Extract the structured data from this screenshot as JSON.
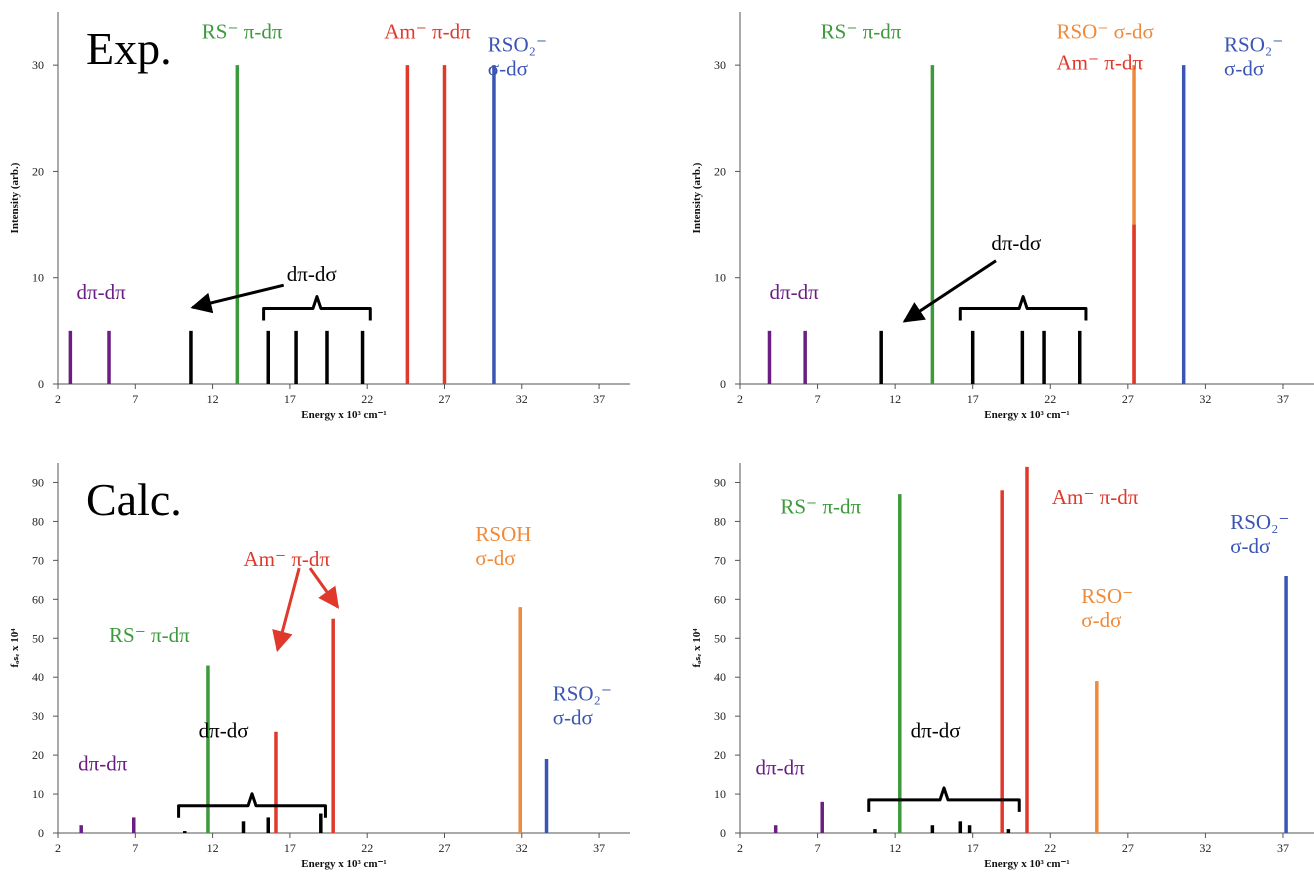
{
  "colors": {
    "purple": "#6a1e82",
    "black": "#000000",
    "green": "#3c9a3c",
    "red": "#e0392b",
    "orange": "#ef8a3a",
    "blue": "#3a55b4"
  },
  "chart_data": [
    {
      "type": "bar",
      "panel": "top-left",
      "big_label": "Exp.",
      "xlabel": "Energy x 10³ cm⁻¹",
      "ylabel": "Intensity (arb.)",
      "xlim": [
        2,
        39
      ],
      "ylim": [
        0,
        35
      ],
      "xticks": [
        2,
        7,
        12,
        17,
        22,
        27,
        32,
        37
      ],
      "yticks": [
        0,
        10,
        20,
        30
      ],
      "sticks": [
        {
          "x": 2.8,
          "y": 5,
          "color": "purple"
        },
        {
          "x": 5.3,
          "y": 5,
          "color": "purple"
        },
        {
          "x": 10.6,
          "y": 5,
          "color": "black"
        },
        {
          "x": 13.6,
          "y": 30,
          "color": "green"
        },
        {
          "x": 15.6,
          "y": 5,
          "color": "black"
        },
        {
          "x": 17.4,
          "y": 5,
          "color": "black"
        },
        {
          "x": 19.4,
          "y": 5,
          "color": "black"
        },
        {
          "x": 21.7,
          "y": 5,
          "color": "black"
        },
        {
          "x": 24.6,
          "y": 30,
          "color": "red"
        },
        {
          "x": 27.0,
          "y": 30,
          "color": "red"
        },
        {
          "x": 30.2,
          "y": 30,
          "color": "blue"
        }
      ],
      "annotations": [
        {
          "lines": [
            "dπ-dπ"
          ],
          "color": "purple",
          "x": 3.2,
          "y": 8
        },
        {
          "lines": [
            "dπ-dσ"
          ],
          "color": "black",
          "x": 16.8,
          "y": 9.7
        },
        {
          "lines": [
            "RS⁻ π-dπ"
          ],
          "color": "green",
          "x": 11.3,
          "y": 32.5
        },
        {
          "lines": [
            "Am⁻ π-dπ"
          ],
          "color": "red",
          "x": 23.1,
          "y": 32.5
        },
        {
          "lines": [
            "RSO₂⁻",
            "σ-dσ"
          ],
          "color": "blue",
          "x": 29.8,
          "y": 31.3
        }
      ]
    },
    {
      "type": "bar",
      "panel": "top-right",
      "big_label": "",
      "xlabel": "Energy x 10³ cm⁻¹",
      "ylabel": "Intensity (arb.)",
      "xlim": [
        2,
        39
      ],
      "ylim": [
        0,
        35
      ],
      "xticks": [
        2,
        7,
        12,
        17,
        22,
        27,
        32,
        37
      ],
      "yticks": [
        0,
        10,
        20,
        30
      ],
      "sticks": [
        {
          "x": 3.9,
          "y": 5,
          "color": "purple"
        },
        {
          "x": 6.2,
          "y": 5,
          "color": "purple"
        },
        {
          "x": 11.1,
          "y": 5,
          "color": "black"
        },
        {
          "x": 14.4,
          "y": 30,
          "color": "green"
        },
        {
          "x": 17.0,
          "y": 5,
          "color": "black"
        },
        {
          "x": 20.2,
          "y": 5,
          "color": "black"
        },
        {
          "x": 21.6,
          "y": 5,
          "color": "black"
        },
        {
          "x": 23.9,
          "y": 5,
          "color": "black"
        },
        {
          "x": 27.4,
          "y": 30,
          "color": "orange"
        },
        {
          "x": 27.4,
          "y": 15,
          "color": "red"
        },
        {
          "x": 30.6,
          "y": 30,
          "color": "blue"
        }
      ],
      "annotations": [
        {
          "lines": [
            "dπ-dπ"
          ],
          "color": "purple",
          "x": 3.9,
          "y": 8
        },
        {
          "lines": [
            "dπ-dσ"
          ],
          "color": "black",
          "x": 18.2,
          "y": 12.6
        },
        {
          "lines": [
            "RS⁻ π-dπ"
          ],
          "color": "green",
          "x": 7.2,
          "y": 32.5
        },
        {
          "lines": [
            "RSO⁻ σ-dσ"
          ],
          "color": "orange",
          "x": 22.4,
          "y": 32.5
        },
        {
          "lines": [
            "Am⁻ π-dπ"
          ],
          "color": "red",
          "x": 22.4,
          "y": 29.6
        },
        {
          "lines": [
            "RSO₂⁻",
            "σ-dσ"
          ],
          "color": "blue",
          "x": 33.2,
          "y": 31.3
        }
      ]
    },
    {
      "type": "bar",
      "panel": "bottom-left",
      "big_label": "Calc.",
      "xlabel": "Energy x 10³ cm⁻¹",
      "ylabel": "fₒₛₑ x 10⁴",
      "xlim": [
        2,
        39
      ],
      "ylim": [
        0,
        95
      ],
      "xticks": [
        2,
        7,
        12,
        17,
        22,
        27,
        32,
        37
      ],
      "yticks": [
        0,
        10,
        20,
        30,
        40,
        50,
        60,
        70,
        80,
        90
      ],
      "sticks": [
        {
          "x": 3.5,
          "y": 2,
          "color": "purple"
        },
        {
          "x": 6.9,
          "y": 4,
          "color": "purple"
        },
        {
          "x": 10.2,
          "y": 0.5,
          "color": "black"
        },
        {
          "x": 11.7,
          "y": 43,
          "color": "green"
        },
        {
          "x": 14.0,
          "y": 3,
          "color": "black"
        },
        {
          "x": 15.6,
          "y": 4,
          "color": "black"
        },
        {
          "x": 16.1,
          "y": 26,
          "color": "red"
        },
        {
          "x": 19.0,
          "y": 5,
          "color": "black"
        },
        {
          "x": 19.8,
          "y": 55,
          "color": "red"
        },
        {
          "x": 31.9,
          "y": 58,
          "color": "orange"
        },
        {
          "x": 33.6,
          "y": 19,
          "color": "blue"
        }
      ],
      "annotations": [
        {
          "lines": [
            "dπ-dπ"
          ],
          "color": "purple",
          "x": 3.3,
          "y": 16
        },
        {
          "lines": [
            "dπ-dσ"
          ],
          "color": "black",
          "x": 11.1,
          "y": 24.5
        },
        {
          "lines": [
            "RS⁻ π-dπ"
          ],
          "color": "green",
          "x": 5.3,
          "y": 49
        },
        {
          "lines": [
            "Am⁻ π-dπ"
          ],
          "color": "red",
          "x": 14.0,
          "y": 68.5
        },
        {
          "lines": [
            "RSOH",
            "σ-dσ"
          ],
          "color": "orange",
          "x": 29.0,
          "y": 75
        },
        {
          "lines": [
            "RSO₂⁻",
            "σ-dσ"
          ],
          "color": "blue",
          "x": 34.0,
          "y": 34
        }
      ]
    },
    {
      "type": "bar",
      "panel": "bottom-right",
      "big_label": "",
      "xlabel": "Energy x 10³ cm⁻¹",
      "ylabel": "fₒₛₑ x 10⁴",
      "xlim": [
        2,
        39
      ],
      "ylim": [
        0,
        95
      ],
      "xticks": [
        2,
        7,
        12,
        17,
        22,
        27,
        32,
        37
      ],
      "yticks": [
        0,
        10,
        20,
        30,
        40,
        50,
        60,
        70,
        80,
        90
      ],
      "sticks": [
        {
          "x": 4.3,
          "y": 2,
          "color": "purple"
        },
        {
          "x": 7.3,
          "y": 8,
          "color": "purple"
        },
        {
          "x": 10.7,
          "y": 1,
          "color": "black"
        },
        {
          "x": 12.3,
          "y": 87,
          "color": "green"
        },
        {
          "x": 14.4,
          "y": 2,
          "color": "black"
        },
        {
          "x": 16.2,
          "y": 3,
          "color": "black"
        },
        {
          "x": 16.8,
          "y": 2,
          "color": "black"
        },
        {
          "x": 18.9,
          "y": 88,
          "color": "red"
        },
        {
          "x": 19.3,
          "y": 1,
          "color": "black"
        },
        {
          "x": 20.5,
          "y": 94,
          "color": "red"
        },
        {
          "x": 25.0,
          "y": 39,
          "color": "orange"
        },
        {
          "x": 37.2,
          "y": 66,
          "color": "blue"
        }
      ],
      "annotations": [
        {
          "lines": [
            "dπ-dπ"
          ],
          "color": "purple",
          "x": 3.0,
          "y": 15
        },
        {
          "lines": [
            "dπ-dσ"
          ],
          "color": "black",
          "x": 13.0,
          "y": 24.5
        },
        {
          "lines": [
            "RS⁻ π-dπ"
          ],
          "color": "green",
          "x": 4.6,
          "y": 82
        },
        {
          "lines": [
            "Am⁻ π-dπ"
          ],
          "color": "red",
          "x": 22.1,
          "y": 84.5
        },
        {
          "lines": [
            "RSO⁻",
            "σ-dσ"
          ],
          "color": "orange",
          "x": 24.0,
          "y": 59
        },
        {
          "lines": [
            "RSO₂⁻",
            "σ-dσ"
          ],
          "color": "blue",
          "x": 33.6,
          "y": 78
        }
      ]
    }
  ]
}
